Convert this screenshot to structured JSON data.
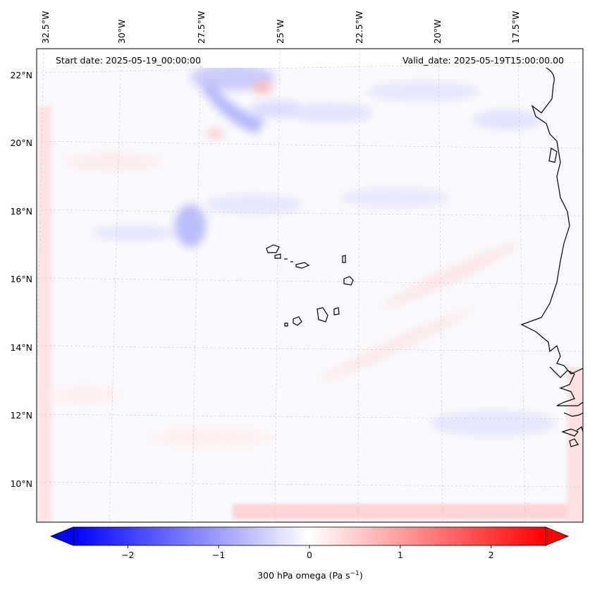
{
  "header": {
    "start_date": "Start date: 2025-05-19_00:00:00",
    "valid_date": "Valid_date: 2025-05-19T15:00:00.00"
  },
  "map": {
    "lon_ticks": [
      "32.5°W",
      "30°W",
      "27.5°W",
      "25°W",
      "22.5°W",
      "20°W",
      "17.5°W"
    ],
    "lat_ticks": [
      "22°N",
      "20°N",
      "18°N",
      "16°N",
      "14°N",
      "12°N",
      "10°N"
    ],
    "field": "300 hPa omega",
    "colors": {
      "negative": "#0000ff",
      "zero": "#ffffff",
      "positive": "#ff0000",
      "coastline": "#000000",
      "gridline": "#cccccc"
    }
  },
  "colorbar": {
    "ticks": [
      "−2",
      "−1",
      "0",
      "1",
      "2"
    ],
    "min": -2.6,
    "max": 2.6,
    "label": "300 hPa omega (Pa s"
  }
}
